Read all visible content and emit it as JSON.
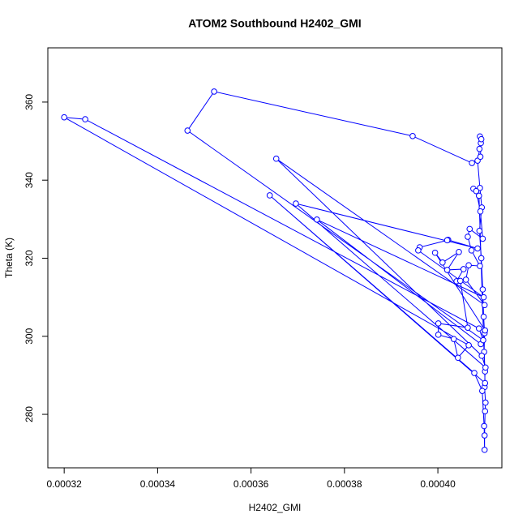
{
  "chart_data": {
    "type": "line",
    "title": "ATOM2 Southbound H2402_GMI",
    "x_label": "H2402_GMI",
    "y_label": "Theta (K)",
    "markers": "open-circle",
    "color": "#0000ff",
    "x": [
      0.000409,
      0.0004092,
      0.0004085,
      0.000409,
      0.0004094,
      0.0004089,
      0.0004093,
      0.0004096,
      0.0004098,
      0.00041,
      0.0004099,
      0.0004101,
      0.00041,
      0.0004102,
      0.0004101,
      0.00041,
      0.00041,
      0.0004099,
      0.0004095,
      0.0004078,
      0.000364,
      0.0004101,
      0.0004088,
      0.0004076,
      0.0004082,
      0.0004091,
      0.0004096,
      0.0004068,
      0.0004064,
      0.0004072,
      0.000409,
      0.0004066,
      0.000406,
      0.00041,
      0.0003654,
      0.0004094,
      0.0004102,
      0.0003696,
      0.0004085,
      0.0004022,
      0.000402,
      0.0003961,
      0.0003958,
      0.0004098,
      0.0003741,
      0.0004092,
      0.0004101,
      0.0003994,
      0.000401,
      0.0004045,
      0.000402,
      0.0004055,
      0.000404,
      0.0004048,
      0.0004064,
      0.0004001,
      0.0004001,
      0.0004034,
      0.0004043,
      0.0004066,
      0.00032,
      0.0003245,
      0.0004088,
      0.0004097,
      0.0003464,
      0.0003521,
      0.0003946,
      0.0004073,
      0.0004091,
      0.0004093,
      0.0004089
    ],
    "values": [
      351.2,
      349.5,
      345,
      338,
      333,
      327,
      320,
      312,
      305,
      300.8,
      296,
      291,
      287,
      283,
      280.8,
      274.6,
      270.9,
      277,
      286,
      290.6,
      336.1,
      288,
      336,
      337.8,
      337.2,
      332,
      325,
      327.5,
      325.5,
      322,
      318,
      318.2,
      314.5,
      308,
      345.5,
      295,
      292,
      334,
      322.5,
      324.7,
      324.6,
      322.8,
      322,
      310,
      329.9,
      298,
      301.5,
      321.4,
      318.9,
      321.6,
      317,
      317.2,
      314.1,
      314.2,
      302.2,
      303.3,
      300.4,
      299.3,
      294.5,
      297.7,
      356.1,
      355.6,
      302,
      299,
      352.7,
      362.7,
      351.3,
      344.4,
      346,
      350.5,
      348
    ],
    "xlim": [
      0.0003165,
      0.0004137
    ],
    "ylim": [
      266.3,
      373.9
    ],
    "xticks": [
      0.00032,
      0.00034,
      0.00036,
      0.00038,
      {
        "value": 0.0004,
        "label": "0.00040"
      }
    ],
    "yticks": [
      280,
      300,
      320,
      340,
      360
    ]
  }
}
